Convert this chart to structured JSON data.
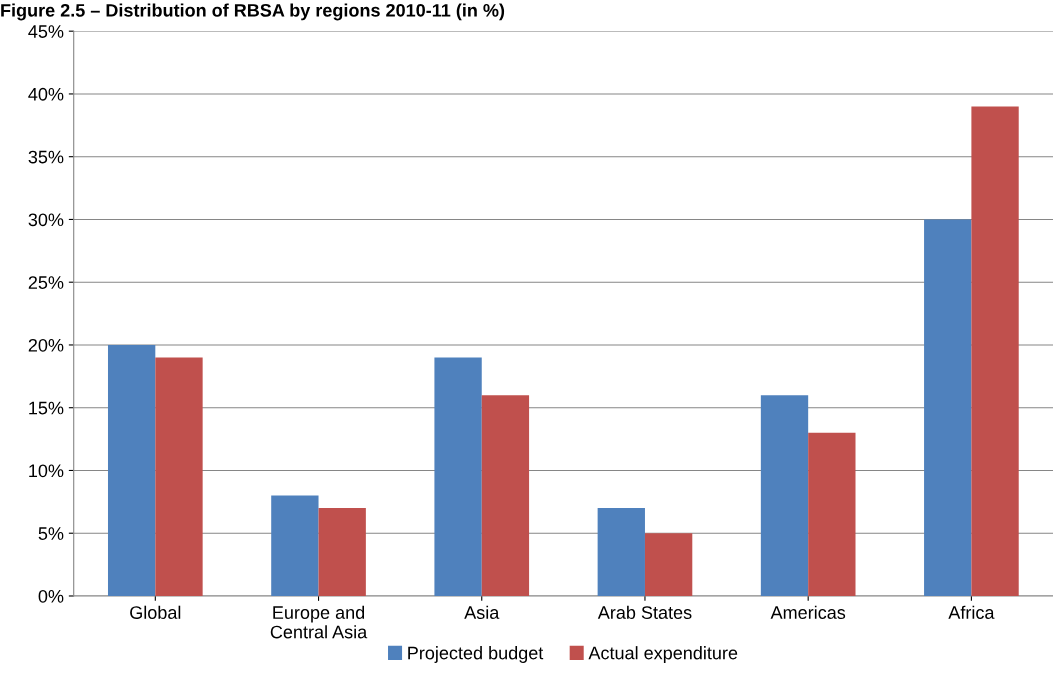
{
  "chart_data": {
    "type": "bar",
    "title": "Figure 2.5 – Distribution of RBSA by regions 2010-11 (in %)",
    "categories": [
      "Global",
      "Europe and\nCentral Asia",
      "Asia",
      "Arab States",
      "Americas",
      "Africa"
    ],
    "series": [
      {
        "name": "Projected budget",
        "color": "#4f81bd",
        "values": [
          20,
          8,
          19,
          7,
          16,
          30
        ]
      },
      {
        "name": "Actual expenditure",
        "color": "#c0504d",
        "values": [
          19,
          7,
          16,
          5,
          13,
          39
        ]
      }
    ],
    "ylim": [
      0,
      45
    ],
    "yticks": [
      {
        "value": 0,
        "label": "0%"
      },
      {
        "value": 5,
        "label": "5%"
      },
      {
        "value": 10,
        "label": "10%"
      },
      {
        "value": 15,
        "label": "15%"
      },
      {
        "value": 20,
        "label": "20%"
      },
      {
        "value": 25,
        "label": "25%"
      },
      {
        "value": 30,
        "label": "30%"
      },
      {
        "value": 35,
        "label": "35%"
      },
      {
        "value": 40,
        "label": "40%"
      },
      {
        "value": 45,
        "label": "45%"
      }
    ],
    "grid": "y",
    "legend": "bottom"
  }
}
